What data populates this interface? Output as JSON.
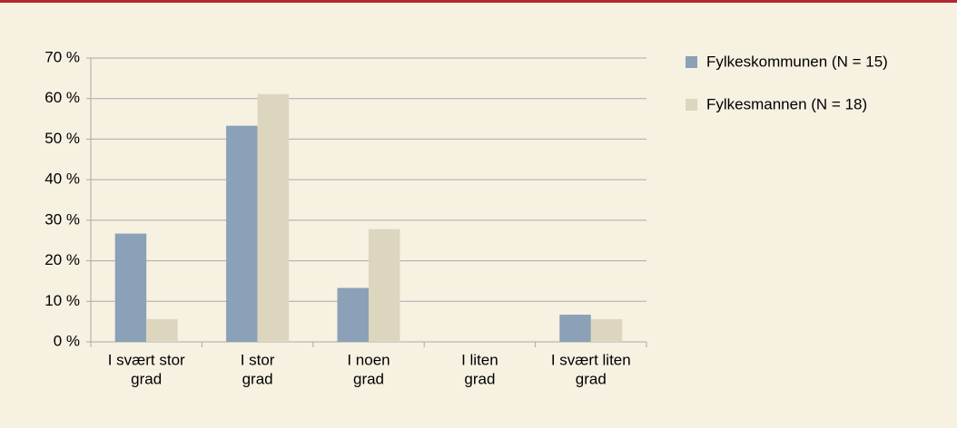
{
  "chart_data": {
    "type": "bar",
    "categories": [
      [
        "I svært stor",
        "grad"
      ],
      [
        "I stor",
        "grad"
      ],
      [
        "I noen",
        "grad"
      ],
      [
        "I liten",
        "grad"
      ],
      [
        "I svært liten",
        "grad"
      ]
    ],
    "series": [
      {
        "name": "Fylkeskommunen (N = 15)",
        "color": "#8aa1b7",
        "values": [
          26.7,
          53.3,
          13.3,
          0,
          6.7
        ]
      },
      {
        "name": "Fylkesmannen (N = 18)",
        "color": "#ddd6be",
        "values": [
          5.6,
          61.1,
          27.8,
          0,
          5.6
        ]
      }
    ],
    "ylim": [
      0,
      70
    ],
    "yticks": [
      {
        "value": 0,
        "label": "0 %"
      },
      {
        "value": 10,
        "label": "10 %"
      },
      {
        "value": 20,
        "label": "20 %"
      },
      {
        "value": 30,
        "label": "30 %"
      },
      {
        "value": 40,
        "label": "40 %"
      },
      {
        "value": 50,
        "label": "50 %"
      },
      {
        "value": 60,
        "label": "60 %"
      },
      {
        "value": 70,
        "label": "70 %"
      }
    ],
    "grid": true,
    "legend": "right"
  }
}
